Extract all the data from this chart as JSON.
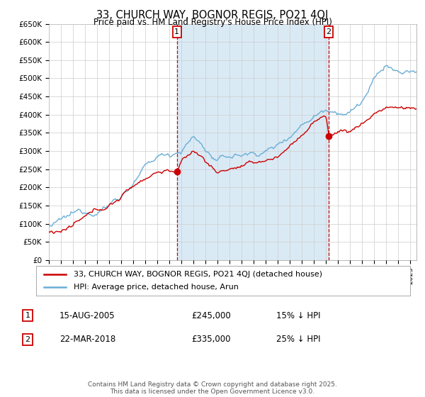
{
  "title": "33, CHURCH WAY, BOGNOR REGIS, PO21 4QJ",
  "subtitle": "Price paid vs. HM Land Registry's House Price Index (HPI)",
  "ylabel_ticks": [
    "£0",
    "£50K",
    "£100K",
    "£150K",
    "£200K",
    "£250K",
    "£300K",
    "£350K",
    "£400K",
    "£450K",
    "£500K",
    "£550K",
    "£600K",
    "£650K"
  ],
  "ytick_values": [
    0,
    50000,
    100000,
    150000,
    200000,
    250000,
    300000,
    350000,
    400000,
    450000,
    500000,
    550000,
    600000,
    650000
  ],
  "hpi_color": "#6baed6",
  "hpi_fill_color": "#daeaf5",
  "price_color": "#cc0000",
  "vline_color": "#cc0000",
  "marker1": {
    "year": 2005.625,
    "label": "1",
    "price": 245000,
    "date": "15-AUG-2005",
    "pct": "15% ↓ HPI"
  },
  "marker2": {
    "year": 2018.22,
    "label": "2",
    "price": 335000,
    "date": "22-MAR-2018",
    "pct": "25% ↓ HPI"
  },
  "legend_line1": "33, CHURCH WAY, BOGNOR REGIS, PO21 4QJ (detached house)",
  "legend_line2": "HPI: Average price, detached house, Arun",
  "footer": "Contains HM Land Registry data © Crown copyright and database right 2025.\nThis data is licensed under the Open Government Licence v3.0.",
  "xmin": 1995,
  "xmax": 2025.5,
  "ymin": 0,
  "ymax": 650000,
  "background_color": "#ffffff",
  "grid_color": "#cccccc"
}
